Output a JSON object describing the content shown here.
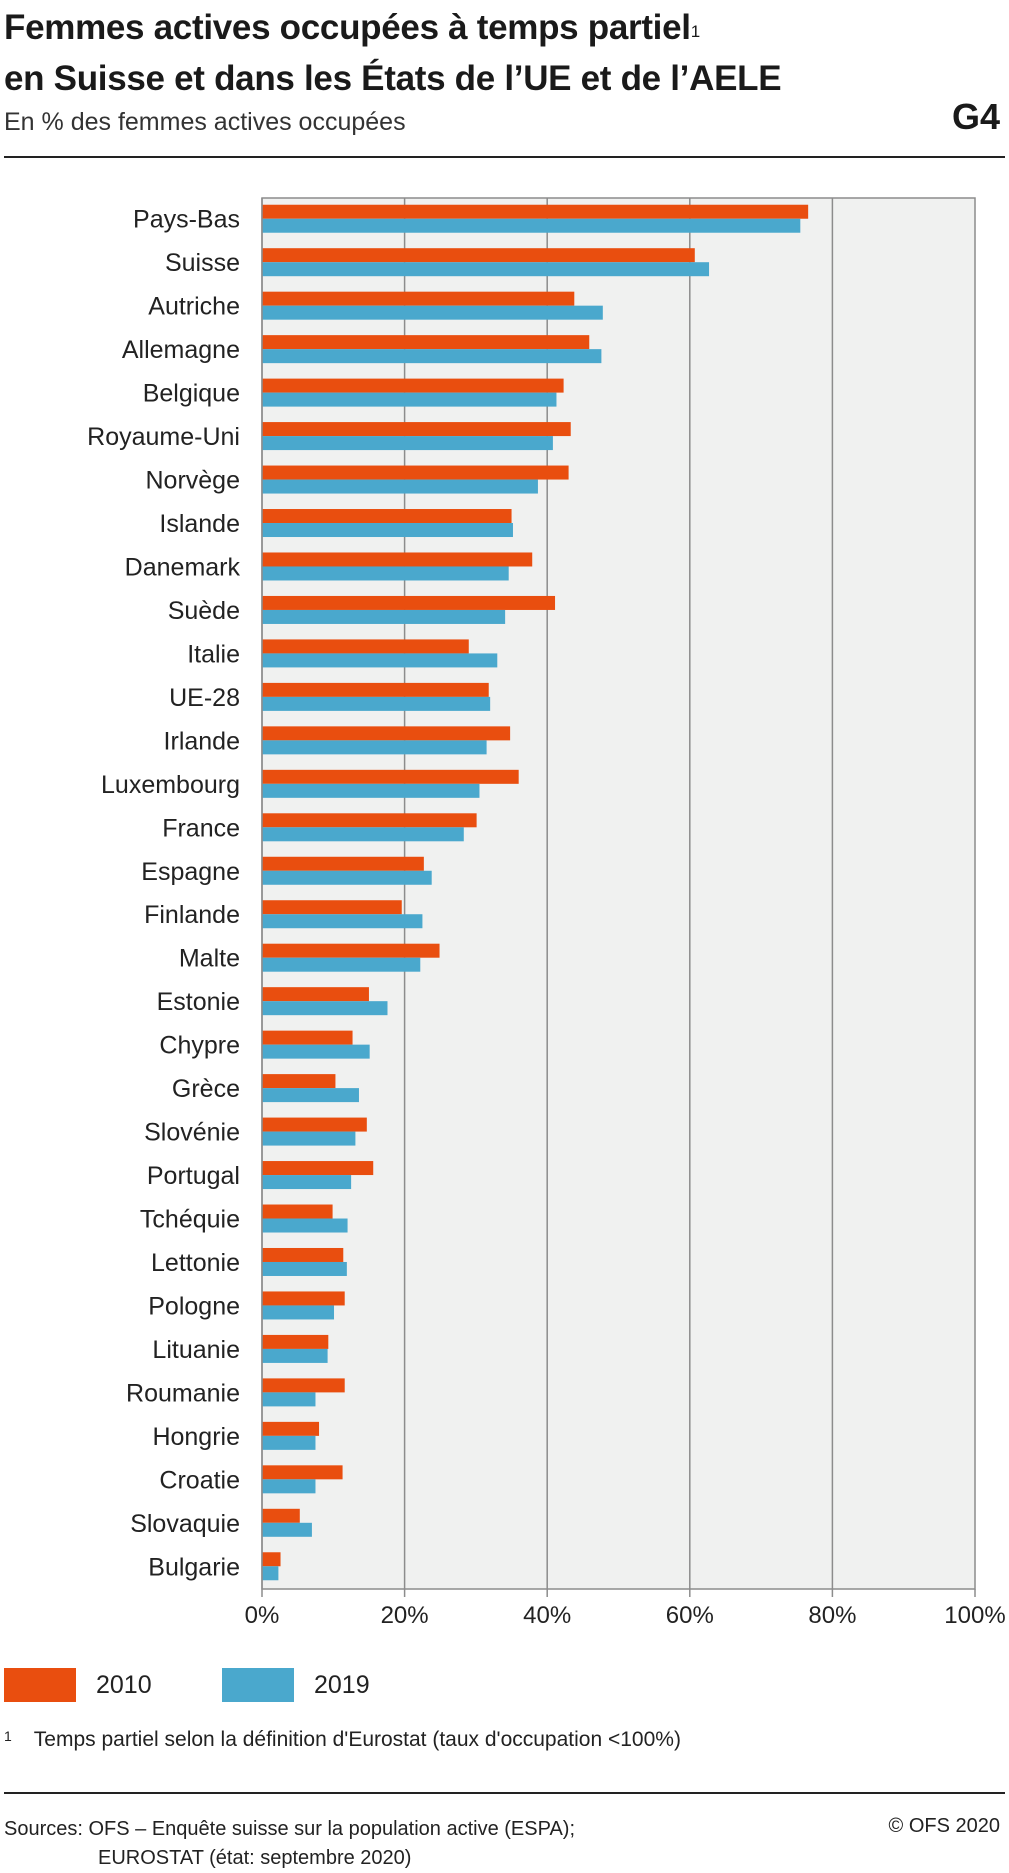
{
  "header": {
    "title_line1": "Femmes actives occupées à temps partiel",
    "title_sup": "1",
    "title_line2": "en Suisse et dans les États de l’UE et de l’AELE",
    "subtitle": "En % des femmes actives occupées",
    "graphic_number": "G4"
  },
  "chart_data": {
    "type": "bar",
    "orientation": "horizontal",
    "categories": [
      "Pays-Bas",
      "Suisse",
      "Autriche",
      "Allemagne",
      "Belgique",
      "Royaume-Uni",
      "Norvège",
      "Islande",
      "Danemark",
      "Suède",
      "Italie",
      "UE-28",
      "Irlande",
      "Luxembourg",
      "France",
      "Espagne",
      "Finlande",
      "Malte",
      "Estonie",
      "Chypre",
      "Grèce",
      "Slovénie",
      "Portugal",
      "Tchéquie",
      "Lettonie",
      "Pologne",
      "Lituanie",
      "Roumanie",
      "Hongrie",
      "Croatie",
      "Slovaquie",
      "Bulgarie"
    ],
    "series": [
      {
        "name": "2010",
        "color": "#e94e0f",
        "values": [
          76.6,
          60.7,
          43.8,
          45.9,
          42.3,
          43.3,
          43.0,
          35.0,
          37.9,
          41.1,
          29.0,
          31.8,
          34.8,
          36.0,
          30.1,
          22.7,
          19.6,
          24.9,
          15.0,
          12.7,
          10.3,
          14.7,
          15.6,
          9.9,
          11.4,
          11.6,
          9.3,
          11.6,
          8.0,
          11.3,
          5.3,
          2.6
        ]
      },
      {
        "name": "2019",
        "color": "#4aa8cd",
        "values": [
          75.5,
          62.7,
          47.8,
          47.6,
          41.3,
          40.8,
          38.7,
          35.2,
          34.6,
          34.1,
          33.0,
          32.0,
          31.5,
          30.5,
          28.3,
          23.8,
          22.5,
          22.2,
          17.6,
          15.1,
          13.6,
          13.1,
          12.5,
          12.0,
          11.9,
          10.1,
          9.2,
          7.5,
          7.5,
          7.5,
          7.0,
          2.3
        ]
      }
    ],
    "xlim": [
      0,
      100
    ],
    "xticks": [
      "0%",
      "20%",
      "40%",
      "60%",
      "80%",
      "100%"
    ],
    "grid": true,
    "legend_position": "bottom-left"
  },
  "footnote": {
    "mark": "1",
    "text": "Temps partiel selon la définition d'Eurostat (taux d'occupation <100%)"
  },
  "footer": {
    "sources_line1": "Sources: OFS – Enquête suisse sur la population active (ESPA);",
    "sources_line2": "EUROSTAT (état: septembre 2020)",
    "copyright": "© OFS 2020"
  }
}
